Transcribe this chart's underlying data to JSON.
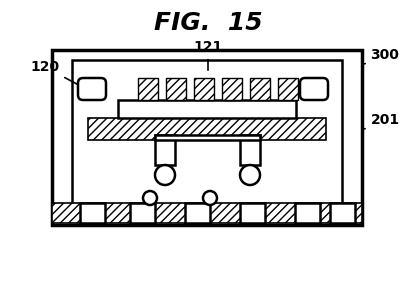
{
  "title": "FIG.  15",
  "bg_color": "#ffffff",
  "line_color": "#000000",
  "hatch_color": "#000000",
  "fig_width": 4.17,
  "fig_height": 2.95,
  "dpi": 100
}
